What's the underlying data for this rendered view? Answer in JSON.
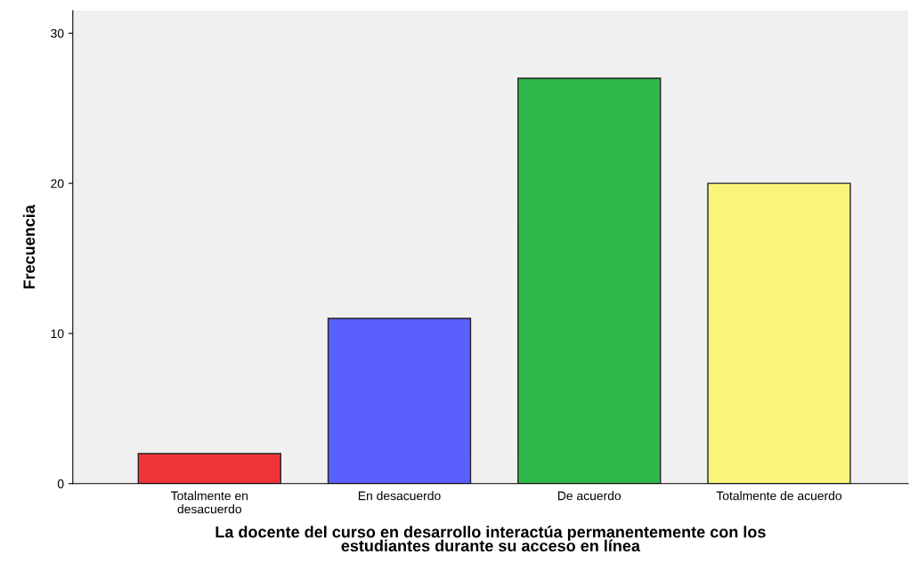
{
  "chart_data": {
    "type": "bar",
    "categories": [
      "Totalmente en\ndesacuerdo",
      "En desacuerdo",
      "De acuerdo",
      "Totalmente de acuerdo"
    ],
    "values": [
      2,
      11,
      27,
      20
    ],
    "colors": [
      "#f0353a",
      "#5a5fff",
      "#2fb84a",
      "#f9f57a"
    ],
    "xlabel": "La docente del curso en desarrollo interactúa permanentemente con los\nestudiantes durante su acceso en línea",
    "ylabel": "Frecuencia",
    "ylim": [
      0,
      31.5
    ],
    "yticks": [
      0,
      10,
      20,
      30
    ],
    "grid": false,
    "legend": false
  }
}
